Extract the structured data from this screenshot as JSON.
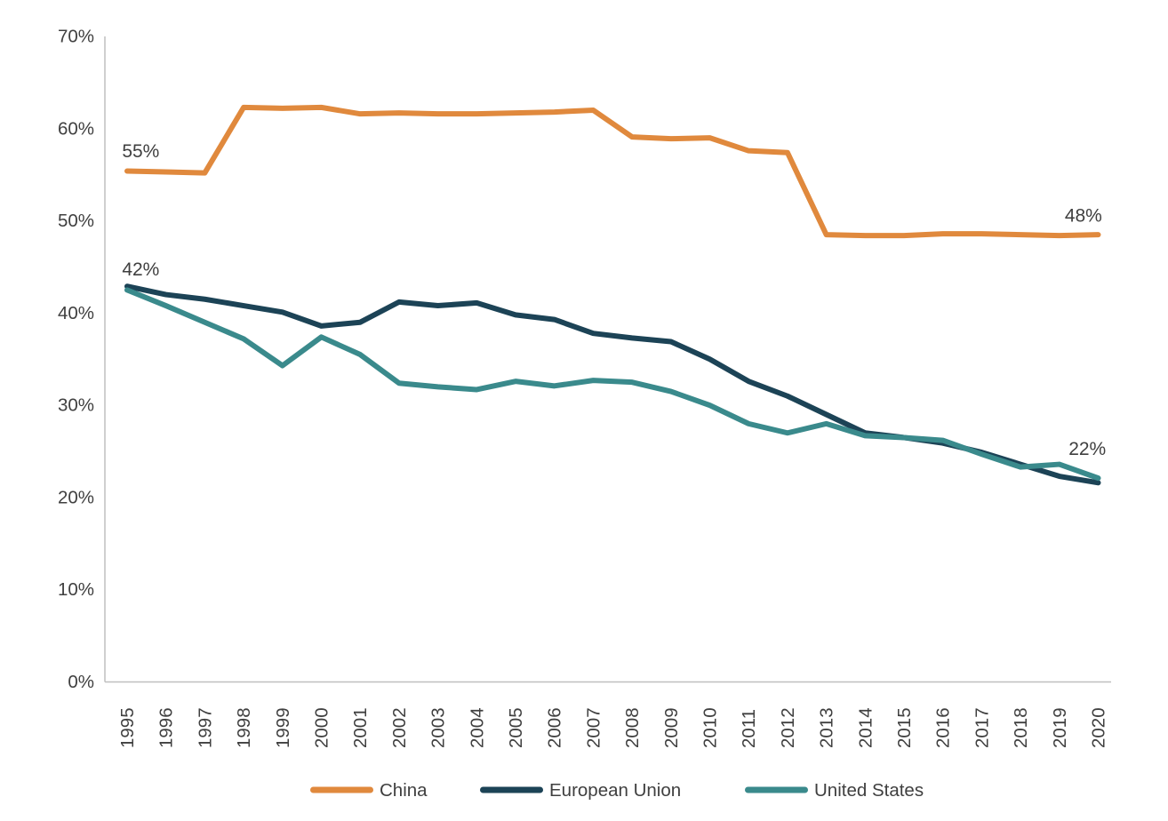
{
  "chart_data": {
    "type": "line",
    "title": "",
    "xlabel": "",
    "ylabel": "",
    "ylim": [
      0,
      70
    ],
    "grid": false,
    "legend_position": "bottom",
    "x": [
      1995,
      1996,
      1997,
      1998,
      1999,
      2000,
      2001,
      2002,
      2003,
      2004,
      2005,
      2006,
      2007,
      2008,
      2009,
      2010,
      2011,
      2012,
      2013,
      2014,
      2015,
      2016,
      2017,
      2018,
      2019,
      2020
    ],
    "x_tick_labels": [
      "1995",
      "1996",
      "1997",
      "1998",
      "1999",
      "2000",
      "2001",
      "2002",
      "2003",
      "2004",
      "2005",
      "2006",
      "2007",
      "2008",
      "2009",
      "2010",
      "2011",
      "2012",
      "2013",
      "2014",
      "2015",
      "2016",
      "2017",
      "2018",
      "2019",
      "2020"
    ],
    "y_ticks": {
      "values": [
        0,
        10,
        20,
        30,
        40,
        50,
        60,
        70
      ],
      "labels": [
        "0%",
        "10%",
        "20%",
        "30%",
        "40%",
        "50%",
        "60%",
        "70%"
      ]
    },
    "series": [
      {
        "name": "China",
        "color": "#E0893D",
        "values": [
          55.4,
          55.3,
          55.2,
          62.3,
          62.2,
          62.3,
          61.6,
          61.7,
          61.6,
          61.6,
          61.7,
          61.8,
          62.0,
          59.1,
          58.9,
          59.0,
          57.6,
          57.4,
          48.5,
          48.4,
          48.4,
          48.6,
          48.6,
          48.5,
          48.4,
          48.5
        ]
      },
      {
        "name": "European Union",
        "color": "#1C4356",
        "values": [
          42.9,
          42.0,
          41.5,
          40.8,
          40.1,
          38.6,
          39.0,
          41.2,
          40.8,
          41.1,
          39.8,
          39.3,
          37.8,
          37.3,
          36.9,
          35.0,
          32.6,
          31.0,
          29.0,
          27.0,
          26.5,
          25.9,
          24.9,
          23.6,
          22.3,
          21.6
        ]
      },
      {
        "name": "United States",
        "color": "#3A8A8C",
        "values": [
          42.5,
          40.8,
          39.0,
          37.2,
          34.3,
          37.4,
          35.5,
          32.4,
          32.0,
          31.7,
          32.6,
          32.1,
          32.7,
          32.5,
          31.5,
          30.0,
          28.0,
          27.0,
          28.0,
          26.7,
          26.5,
          26.2,
          24.7,
          23.3,
          23.6,
          22.1
        ]
      }
    ],
    "annotations": [
      {
        "text": "55%",
        "x": 1994.87,
        "y": 56.9,
        "anchor": "start"
      },
      {
        "text": "42%",
        "x": 1994.87,
        "y": 44.1,
        "anchor": "start"
      },
      {
        "text": "48%",
        "x": 2020.1,
        "y": 49.9,
        "anchor": "end"
      },
      {
        "text": "22%",
        "x": 2020.2,
        "y": 24.6,
        "anchor": "end"
      }
    ],
    "legend": [
      {
        "label": "China",
        "color": "#E0893D"
      },
      {
        "label": "European Union",
        "color": "#1C4356"
      },
      {
        "label": "United States",
        "color": "#3A8A8C"
      }
    ]
  },
  "colors": {
    "axis_line": "#BFBFBF",
    "tick_text": "#404040",
    "annotation_text": "#3F3F3F",
    "legend_text": "#3F3F3F"
  }
}
